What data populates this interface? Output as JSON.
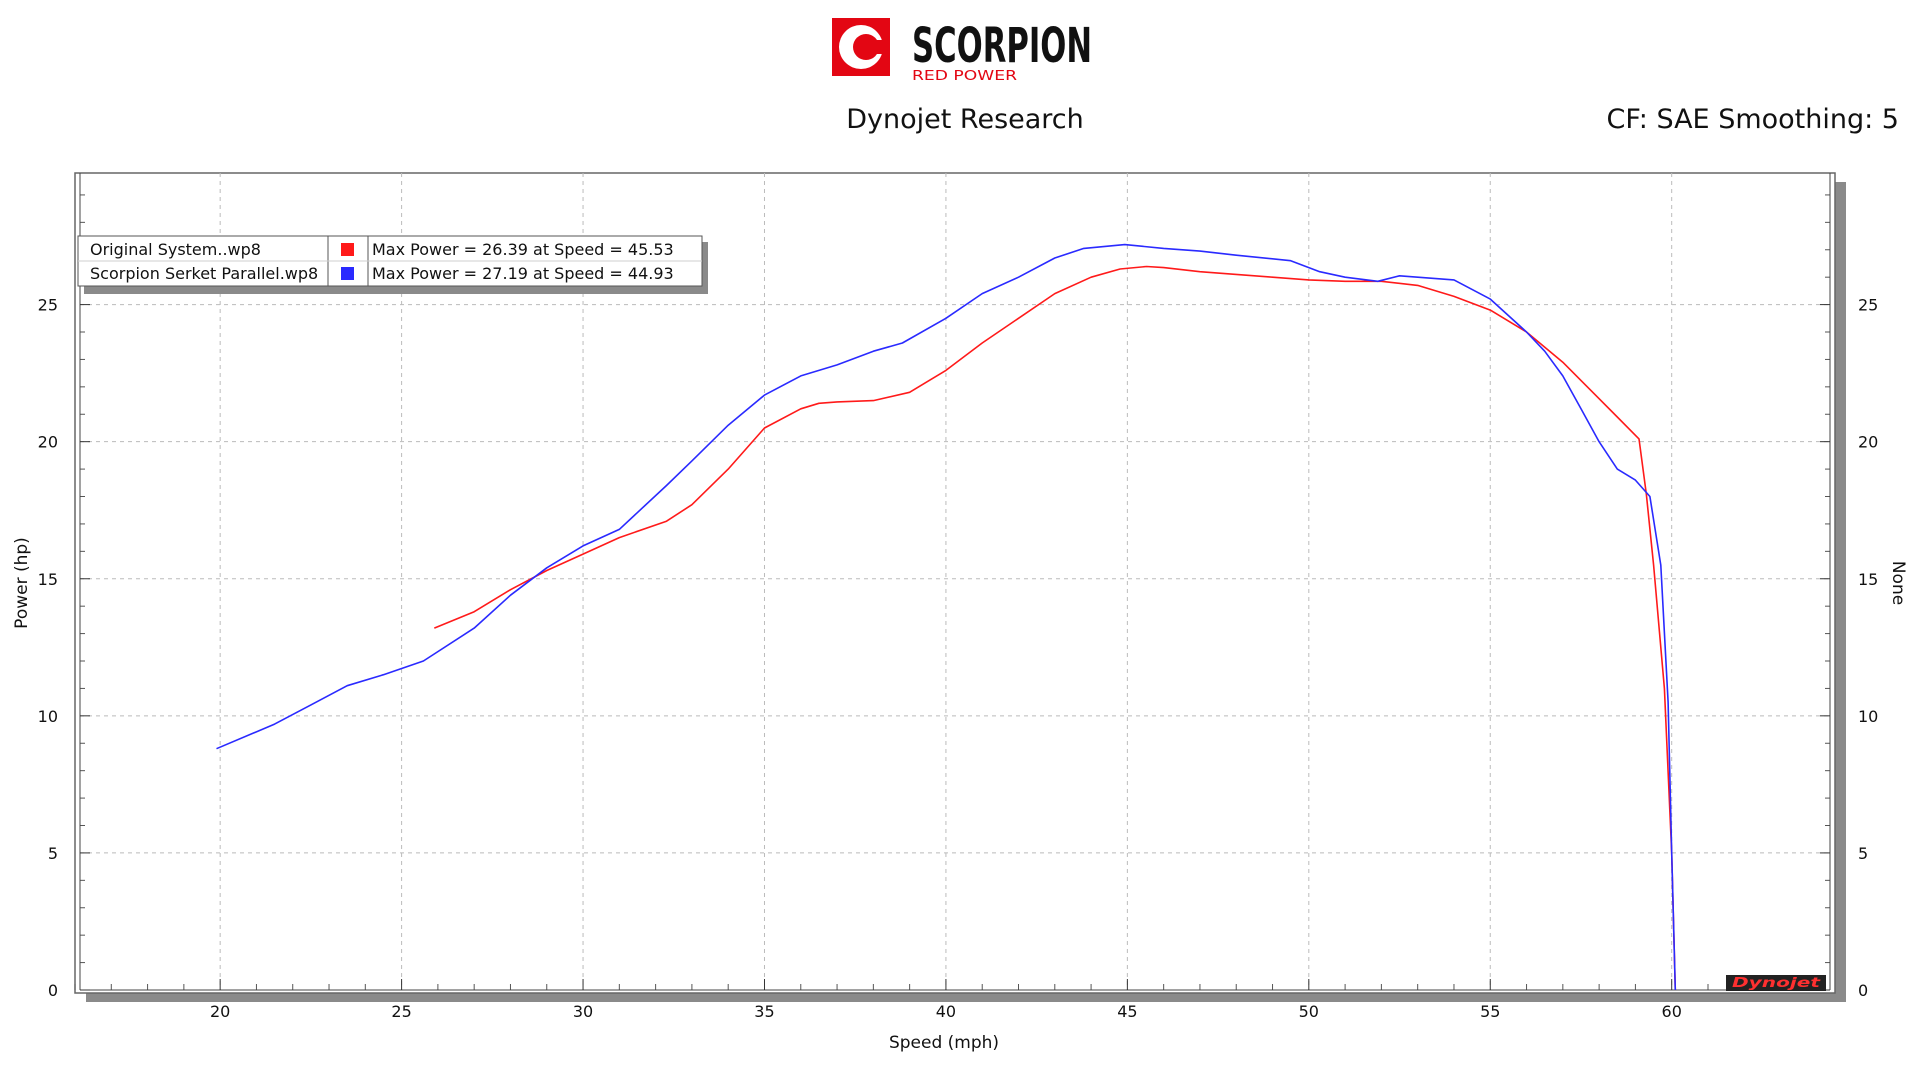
{
  "header": {
    "logo_name": "SCORPION",
    "logo_sub": "RED POWER",
    "center_title": "Dynojet Research",
    "right_info": "CF: SAE Smoothing: 5"
  },
  "colors": {
    "original": "#ff1a1a",
    "serket": "#2a2aff",
    "brand_red": "#e30613",
    "frame": "#666666"
  },
  "legend": {
    "rows": [
      {
        "file": "Original System..wp8",
        "info": "Max Power = 26.39 at Speed = 45.53",
        "color": "#ff1a1a"
      },
      {
        "file": "Scorpion Serket Parallel.wp8",
        "info": "Max Power = 27.19 at Speed = 44.93",
        "color": "#2a2aff"
      }
    ]
  },
  "footer_logo": "Dynojet",
  "chart_data": {
    "type": "line",
    "xlabel": "Speed (mph)",
    "ylabel": "Power (hp)",
    "y2label": "None",
    "xlim": [
      16,
      64.5
    ],
    "ylim": [
      0,
      29.8
    ],
    "xticks": [
      20,
      25,
      30,
      35,
      40,
      45,
      50,
      55,
      60
    ],
    "yticks": [
      0,
      5,
      10,
      15,
      20,
      25
    ],
    "grid": true,
    "series": [
      {
        "name": "Original System..wp8",
        "color": "#ff1a1a",
        "x": [
          25.9,
          27,
          28,
          29,
          30,
          31,
          32.3,
          33,
          34,
          35,
          36,
          36.5,
          37,
          38,
          39,
          40,
          41,
          42,
          43,
          44,
          44.8,
          45.53,
          46,
          47,
          48,
          49,
          50,
          51,
          52,
          53,
          54,
          55,
          56,
          57,
          57.9,
          58.5,
          59.1,
          59.3,
          59.5,
          59.8,
          60.0,
          60.1
        ],
        "y": [
          13.2,
          13.8,
          14.6,
          15.3,
          15.9,
          16.5,
          17.1,
          17.7,
          19.0,
          20.5,
          21.2,
          21.4,
          21.45,
          21.5,
          21.8,
          22.6,
          23.6,
          24.5,
          25.4,
          26.0,
          26.3,
          26.39,
          26.35,
          26.2,
          26.1,
          26.0,
          25.9,
          25.85,
          25.85,
          25.7,
          25.3,
          24.8,
          24.0,
          22.9,
          21.7,
          20.9,
          20.1,
          18.1,
          15.5,
          11.0,
          5.0,
          0.0
        ]
      },
      {
        "name": "Scorpion Serket Parallel.wp8",
        "color": "#2a2aff",
        "x": [
          19.9,
          21.5,
          22.5,
          23.5,
          24.5,
          25.6,
          27,
          28,
          29,
          30,
          31,
          32.3,
          33,
          34,
          35,
          36,
          37,
          38,
          38.8,
          40,
          41,
          42,
          43,
          43.8,
          44.93,
          46,
          47,
          48,
          49.5,
          50.3,
          51,
          51.9,
          52.5,
          54,
          55,
          56,
          56.5,
          57,
          57.5,
          58,
          58.5,
          59,
          59.4,
          59.7,
          59.9,
          60.0,
          60.1
        ],
        "y": [
          8.8,
          9.7,
          10.4,
          11.1,
          11.5,
          12.0,
          13.2,
          14.4,
          15.4,
          16.2,
          16.8,
          18.4,
          19.3,
          20.6,
          21.7,
          22.4,
          22.8,
          23.3,
          23.6,
          24.5,
          25.4,
          26.0,
          26.7,
          27.05,
          27.19,
          27.05,
          26.95,
          26.8,
          26.6,
          26.2,
          26.0,
          25.85,
          26.05,
          25.9,
          25.2,
          24.0,
          23.3,
          22.4,
          21.2,
          20.0,
          19.0,
          18.6,
          18.0,
          15.5,
          10.5,
          5.0,
          0.0
        ]
      }
    ]
  }
}
